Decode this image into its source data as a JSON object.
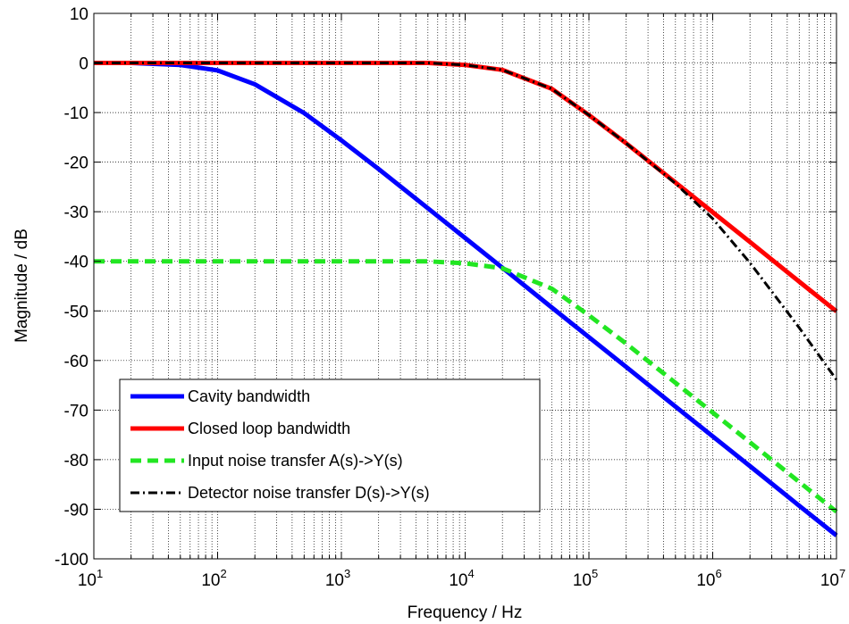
{
  "chart_data": {
    "type": "line",
    "title": "",
    "xlabel": "Frequency / Hz",
    "ylabel": "Magnitude / dB",
    "xscale": "log",
    "xlim": [
      10,
      10000000
    ],
    "ylim": [
      -100,
      10
    ],
    "x_ticks": [
      {
        "base": "10",
        "exp": "1"
      },
      {
        "base": "10",
        "exp": "2"
      },
      {
        "base": "10",
        "exp": "3"
      },
      {
        "base": "10",
        "exp": "4"
      },
      {
        "base": "10",
        "exp": "5"
      },
      {
        "base": "10",
        "exp": "6"
      },
      {
        "base": "10",
        "exp": "7"
      }
    ],
    "y_ticks": [
      "10",
      "0",
      "-10",
      "-20",
      "-30",
      "-40",
      "-50",
      "-60",
      "-70",
      "-80",
      "-90",
      "-100"
    ],
    "grid": true,
    "legend_position": "bottom-left",
    "series": [
      {
        "name": "Cavity bandwidth",
        "color": "#0000ff",
        "style": "solid",
        "x": [
          10,
          20,
          50,
          100,
          200,
          500,
          1000,
          2000,
          5000,
          10000,
          20000,
          50000,
          100000,
          200000,
          500000,
          1000000,
          2000000,
          5000000,
          10000000
        ],
        "y": [
          0,
          0,
          -0.4,
          -1.5,
          -4.3,
          -10.1,
          -15.6,
          -21.4,
          -29.3,
          -35.3,
          -41.3,
          -49.3,
          -55.3,
          -61.3,
          -69.3,
          -75.3,
          -81.3,
          -89.3,
          -95.3
        ]
      },
      {
        "name": "Closed loop bandwidth",
        "color": "#ff0000",
        "style": "solid",
        "x": [
          10,
          100,
          1000,
          5000,
          10000,
          20000,
          50000,
          100000,
          200000,
          500000,
          1000000,
          2000000,
          5000000,
          10000000
        ],
        "y": [
          0,
          0,
          0,
          0,
          -0.4,
          -1.4,
          -5.2,
          -10.5,
          -16.2,
          -24.1,
          -30.1,
          -36.1,
          -44.1,
          -50.1
        ]
      },
      {
        "name": "Input noise transfer A(s)->Y(s)",
        "color": "#22e622",
        "style": "dashed",
        "x": [
          10,
          100,
          1000,
          5000,
          10000,
          20000,
          50000,
          100000,
          200000,
          500000,
          1000000,
          2000000,
          5000000,
          10000000
        ],
        "y": [
          -40,
          -40,
          -40,
          -40,
          -40.4,
          -41.4,
          -45.5,
          -50.9,
          -56.6,
          -64.5,
          -70.5,
          -76.5,
          -84.5,
          -90.5
        ]
      },
      {
        "name": "Detector noise transfer D(s)->Y(s)",
        "color": "#000000",
        "style": "dashdot",
        "x": [
          10,
          100,
          1000,
          5000,
          10000,
          20000,
          50000,
          100000,
          200000,
          500000,
          1000000,
          2000000,
          5000000,
          10000000
        ],
        "y": [
          0,
          0,
          0,
          0,
          -0.4,
          -1.4,
          -5.2,
          -10.5,
          -16.2,
          -24.3,
          -31.4,
          -40.3,
          -53.4,
          -63.9
        ]
      }
    ]
  }
}
